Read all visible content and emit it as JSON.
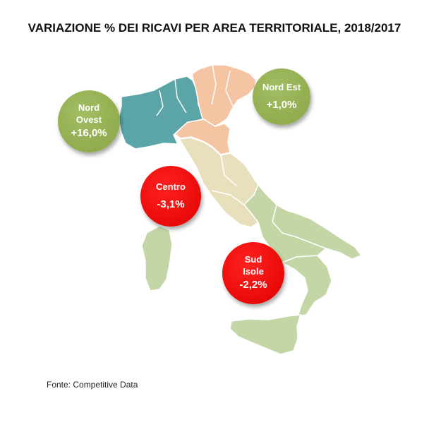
{
  "title": "VARIAZIONE % DEI RICAVI PER AREA TERRITORIALE, 2018/2017",
  "source": "Fonte: Competitive Data",
  "regions": [
    {
      "name_line1": "Nord",
      "name_line2": "Ovest",
      "value": "+16,0%",
      "value_num": 16.0,
      "color": "#5ba4a8",
      "bubble_color": "#95b255"
    },
    {
      "name_line1": "Nord Est",
      "name_line2": "",
      "value": "+1,0%",
      "value_num": 1.0,
      "color": "#f5c4a2",
      "bubble_color": "#95b255"
    },
    {
      "name_line1": "Centro",
      "name_line2": "",
      "value": "-3,1%",
      "value_num": -3.1,
      "color": "#e8e0bd",
      "bubble_color": "#ee0000"
    },
    {
      "name_line1": "Sud",
      "name_line2": "Isole",
      "value": "-2,2%",
      "value_num": -2.2,
      "color": "#c4d6a5",
      "bubble_color": "#ee0000"
    }
  ]
}
